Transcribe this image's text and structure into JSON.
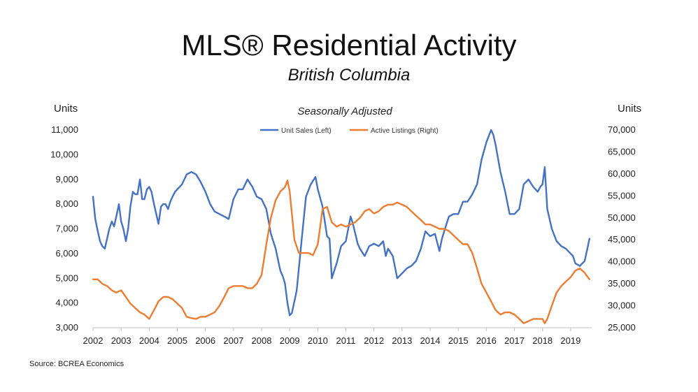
{
  "title": "MLS® Residential Activity",
  "subtitle": "British Columbia",
  "source": "Source: BCREA Economics",
  "chart_data": {
    "type": "line",
    "chart_subtitle": "Seasonally Adjusted",
    "ylabel_left": "Units",
    "ylabel_right": "Units",
    "x_ticks": [
      "2002",
      "2003",
      "2004",
      "2005",
      "2006",
      "2007",
      "2008",
      "2009",
      "2010",
      "2011",
      "2012",
      "2013",
      "2014",
      "2015",
      "2016",
      "2017",
      "2018",
      "2019"
    ],
    "x_range": [
      2002.0,
      2019.75
    ],
    "ylim_left": [
      3000,
      11000
    ],
    "ylim_right": [
      25000,
      70000
    ],
    "y_ticks_left": [
      "3,000",
      "4,000",
      "5,000",
      "6,000",
      "7,000",
      "8,000",
      "9,000",
      "10,000",
      "11,000"
    ],
    "y_ticks_right": [
      "25,000",
      "30,000",
      "35,000",
      "40,000",
      "45,000",
      "50,000",
      "55,000",
      "60,000",
      "65,000",
      "70,000"
    ],
    "legend_position": "top-center",
    "grid": false,
    "colors": {
      "unit_sales": "#4472C4",
      "active_listings": "#ED7D31"
    },
    "series": [
      {
        "name": "Unit Sales (Left)",
        "axis": "left",
        "x": [
          2002.0,
          2002.08,
          2002.17,
          2002.25,
          2002.33,
          2002.42,
          2002.5,
          2002.58,
          2002.67,
          2002.75,
          2002.83,
          2002.92,
          2003.0,
          2003.08,
          2003.17,
          2003.25,
          2003.33,
          2003.42,
          2003.5,
          2003.58,
          2003.67,
          2003.75,
          2003.83,
          2003.92,
          2004.0,
          2004.08,
          2004.17,
          2004.25,
          2004.33,
          2004.42,
          2004.5,
          2004.58,
          2004.67,
          2004.75,
          2004.83,
          2004.92,
          2005.0,
          2005.17,
          2005.33,
          2005.5,
          2005.67,
          2005.83,
          2006.0,
          2006.17,
          2006.33,
          2006.5,
          2006.67,
          2006.83,
          2007.0,
          2007.17,
          2007.33,
          2007.5,
          2007.67,
          2007.83,
          2008.0,
          2008.17,
          2008.33,
          2008.5,
          2008.67,
          2008.75,
          2008.83,
          2008.92,
          2009.0,
          2009.08,
          2009.25,
          2009.42,
          2009.58,
          2009.75,
          2009.92,
          2010.0,
          2010.17,
          2010.33,
          2010.42,
          2010.5,
          2010.67,
          2010.83,
          2011.0,
          2011.17,
          2011.25,
          2011.42,
          2011.5,
          2011.67,
          2011.83,
          2012.0,
          2012.17,
          2012.33,
          2012.42,
          2012.5,
          2012.67,
          2012.83,
          2013.0,
          2013.17,
          2013.33,
          2013.5,
          2013.67,
          2013.83,
          2014.0,
          2014.17,
          2014.33,
          2014.42,
          2014.5,
          2014.67,
          2014.83,
          2015.0,
          2015.17,
          2015.33,
          2015.5,
          2015.67,
          2015.83,
          2016.0,
          2016.17,
          2016.25,
          2016.33,
          2016.5,
          2016.67,
          2016.83,
          2017.0,
          2017.17,
          2017.33,
          2017.5,
          2017.67,
          2017.83,
          2017.92,
          2018.0,
          2018.08,
          2018.17,
          2018.33,
          2018.5,
          2018.67,
          2018.83,
          2019.0,
          2019.08,
          2019.17,
          2019.33,
          2019.5,
          2019.67
        ],
        "values": [
          8300,
          7400,
          6900,
          6500,
          6300,
          6200,
          6600,
          7000,
          7300,
          7100,
          7500,
          8000,
          7300,
          7000,
          6500,
          7000,
          7900,
          8500,
          8400,
          8400,
          9000,
          8200,
          8200,
          8600,
          8700,
          8500,
          8000,
          7600,
          7200,
          7900,
          8000,
          8000,
          7800,
          8100,
          8300,
          8500,
          8600,
          8800,
          9200,
          9300,
          9200,
          8900,
          8500,
          8000,
          7700,
          7600,
          7500,
          7400,
          8200,
          8600,
          8600,
          9000,
          8700,
          8300,
          8200,
          7800,
          6800,
          6200,
          5300,
          5100,
          4800,
          4000,
          3500,
          3600,
          4500,
          6500,
          8300,
          8800,
          9100,
          8600,
          7900,
          6700,
          6600,
          5000,
          5600,
          6300,
          6500,
          7500,
          7200,
          6400,
          6200,
          5900,
          6300,
          6400,
          6300,
          6500,
          5900,
          6200,
          5900,
          5000,
          5200,
          5400,
          5500,
          5700,
          6200,
          6900,
          6700,
          6800,
          6100,
          6600,
          6900,
          7500,
          7600,
          7600,
          8100,
          8100,
          8400,
          8800,
          9800,
          10500,
          11000,
          10800,
          10400,
          9300,
          8500,
          7600,
          7600,
          7800,
          8800,
          9000,
          8700,
          8500,
          8700,
          8800,
          9500,
          7800,
          7000,
          6500,
          6300,
          6200,
          6000,
          5900,
          5600,
          5500,
          5700,
          6600
        ]
      },
      {
        "name": "Active Listings (Right)",
        "axis": "right",
        "x": [
          2002.0,
          2002.17,
          2002.33,
          2002.5,
          2002.67,
          2002.83,
          2003.0,
          2003.17,
          2003.33,
          2003.5,
          2003.67,
          2003.83,
          2004.0,
          2004.17,
          2004.33,
          2004.5,
          2004.67,
          2004.83,
          2005.0,
          2005.17,
          2005.33,
          2005.5,
          2005.67,
          2005.83,
          2006.0,
          2006.17,
          2006.33,
          2006.5,
          2006.67,
          2006.83,
          2007.0,
          2007.17,
          2007.33,
          2007.5,
          2007.67,
          2007.83,
          2008.0,
          2008.17,
          2008.33,
          2008.5,
          2008.67,
          2008.83,
          2008.92,
          2009.0,
          2009.17,
          2009.33,
          2009.5,
          2009.67,
          2009.83,
          2010.0,
          2010.17,
          2010.33,
          2010.5,
          2010.67,
          2010.83,
          2011.0,
          2011.17,
          2011.33,
          2011.5,
          2011.67,
          2011.83,
          2012.0,
          2012.17,
          2012.33,
          2012.5,
          2012.67,
          2012.83,
          2013.0,
          2013.17,
          2013.33,
          2013.5,
          2013.67,
          2013.83,
          2014.0,
          2014.17,
          2014.33,
          2014.5,
          2014.67,
          2014.83,
          2015.0,
          2015.17,
          2015.33,
          2015.5,
          2015.67,
          2015.83,
          2016.0,
          2016.17,
          2016.33,
          2016.5,
          2016.67,
          2016.83,
          2017.0,
          2017.17,
          2017.33,
          2017.5,
          2017.67,
          2017.83,
          2018.0,
          2018.08,
          2018.17,
          2018.33,
          2018.5,
          2018.67,
          2018.83,
          2019.0,
          2019.17,
          2019.33,
          2019.5,
          2019.67
        ],
        "values": [
          36000,
          36000,
          35000,
          34500,
          33500,
          33000,
          33500,
          32000,
          30500,
          29500,
          28500,
          28000,
          27000,
          29000,
          31000,
          32000,
          32000,
          31500,
          30500,
          29500,
          27500,
          27200,
          27000,
          27500,
          27500,
          28000,
          28500,
          30000,
          32000,
          34000,
          34500,
          34500,
          34500,
          34000,
          34000,
          35000,
          37000,
          44000,
          50000,
          54000,
          56000,
          57000,
          58500,
          56000,
          45000,
          42000,
          42000,
          42000,
          41500,
          44000,
          52000,
          52500,
          49000,
          48000,
          48500,
          48000,
          48500,
          49000,
          50000,
          51500,
          52000,
          51000,
          51500,
          52500,
          53000,
          53000,
          53500,
          53000,
          52500,
          51500,
          50500,
          49500,
          48500,
          48500,
          48000,
          47500,
          47500,
          47000,
          46000,
          45000,
          44000,
          44000,
          42000,
          38500,
          35000,
          33000,
          31000,
          29000,
          28000,
          28500,
          28500,
          28000,
          27000,
          26000,
          26500,
          27000,
          27000,
          27000,
          26000,
          27000,
          30000,
          33000,
          34500,
          35500,
          36500,
          38000,
          38500,
          37500,
          36000
        ]
      }
    ]
  }
}
